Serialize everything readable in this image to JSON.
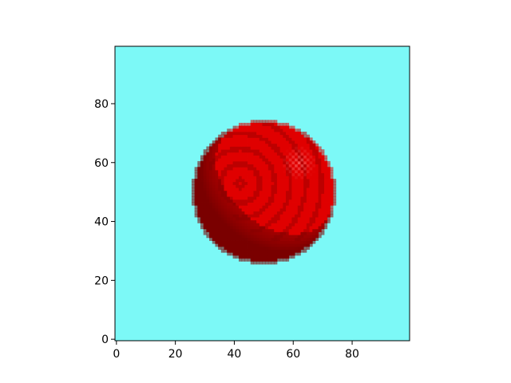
{
  "chart_data": {
    "type": "heatmap",
    "title": "",
    "xlabel": "",
    "ylabel": "",
    "xlim": [
      -0.5,
      99.5
    ],
    "ylim": [
      -0.5,
      99.5
    ],
    "x_ticks": [
      0,
      20,
      40,
      60,
      80
    ],
    "y_ticks": [
      0,
      20,
      40,
      60,
      80
    ],
    "x_tick_labels": [
      "0",
      "20",
      "40",
      "60",
      "80"
    ],
    "y_tick_labels": [
      "0",
      "20",
      "40",
      "60",
      "80"
    ],
    "grid": false,
    "image": {
      "description_free": true,
      "background_color": "#7cf9f7",
      "sphere_center": [
        50,
        50
      ],
      "sphere_radius": 24,
      "sphere_base_color": "#e00000",
      "sphere_dark_color": "#7a0000",
      "sphere_highlight_color": "#ff8080"
    }
  }
}
